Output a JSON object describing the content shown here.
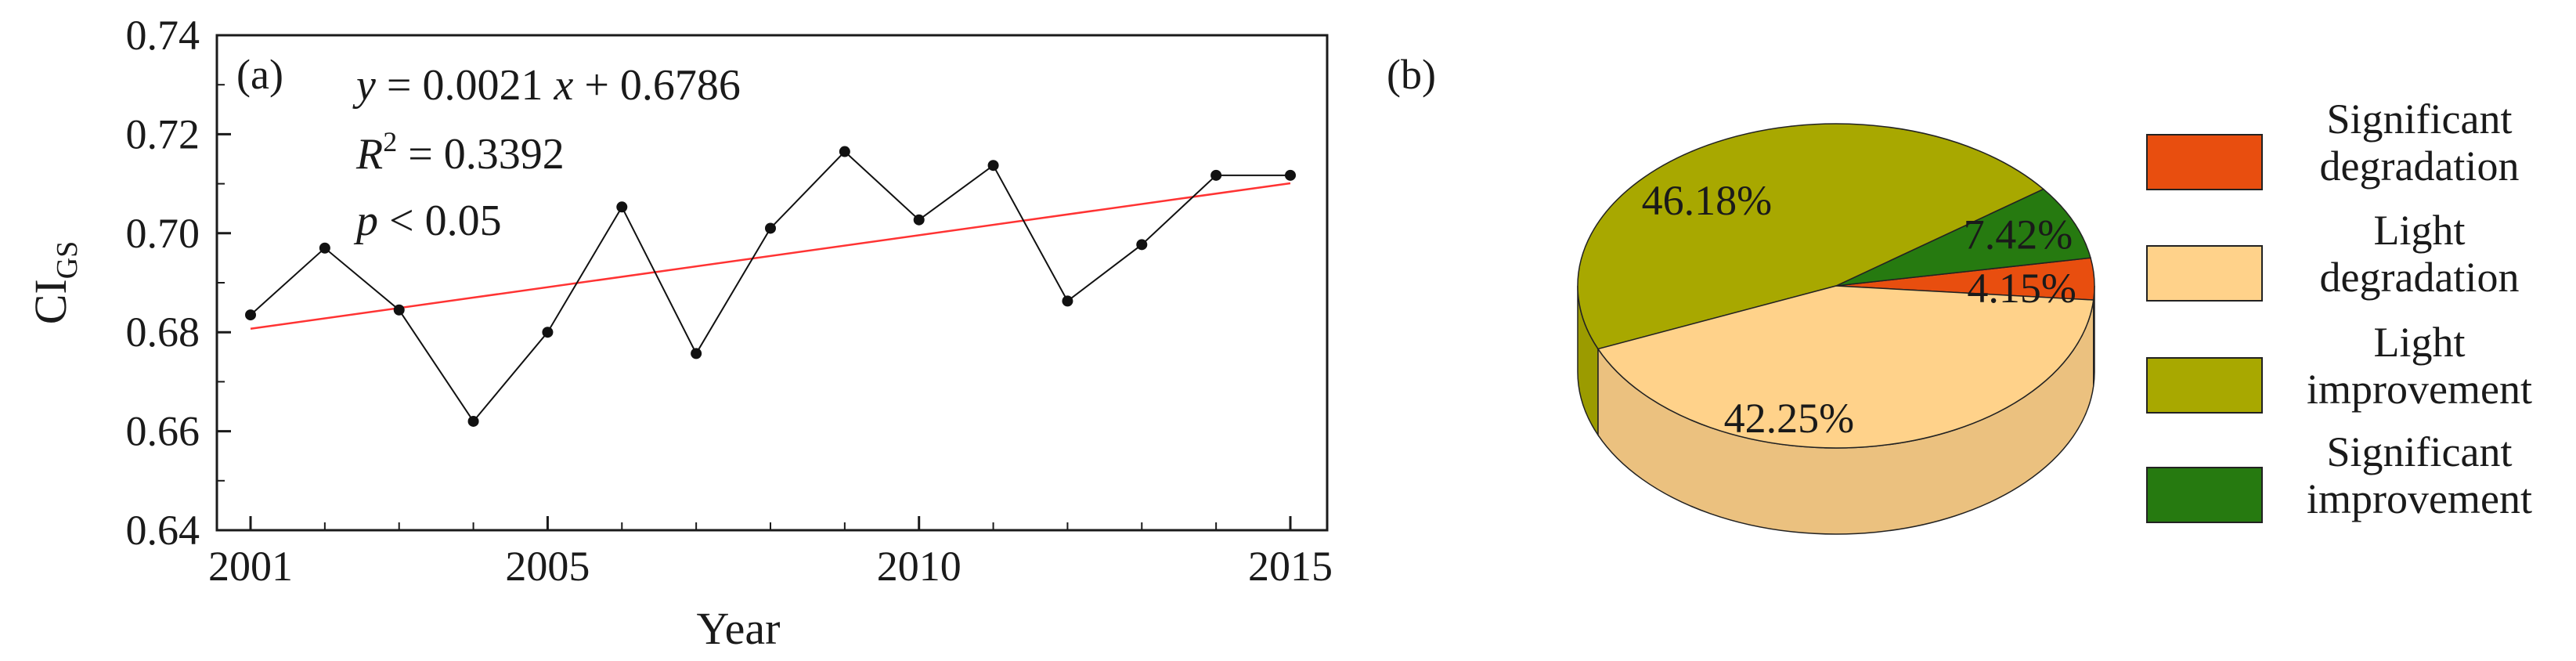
{
  "chart_data": [
    {
      "panel": "(a)",
      "type": "line",
      "title": "",
      "xlabel": "Year",
      "ylabel": "CI",
      "ylabel_subscript": "GS",
      "x": [
        2001,
        2002,
        2003,
        2004,
        2005,
        2006,
        2007,
        2008,
        2009,
        2010,
        2011,
        2012,
        2013,
        2014,
        2015
      ],
      "series": [
        {
          "values": [
            0.6835,
            0.697,
            0.6845,
            0.662,
            0.68,
            0.7053,
            0.6757,
            0.701,
            0.7165,
            0.7027,
            0.7137,
            0.6863,
            0.6977,
            0.7117,
            0.7117
          ],
          "color": "#111111"
        }
      ],
      "trend": {
        "slope": 0.0021,
        "intercept": 0.6786,
        "color": "#ff3333"
      },
      "xticks": [
        2001,
        2005,
        2010,
        2015
      ],
      "yticks": [
        "0.64",
        "0.66",
        "0.68",
        "0.70",
        "0.72",
        "0.74"
      ],
      "xlim": [
        2001,
        2015
      ],
      "ylim": [
        0.64,
        0.74
      ],
      "annotations": {
        "eq_y": "y",
        "eq_coef": " = 0.0021 ",
        "eq_x": "x",
        "eq_rest": " + 0.6786",
        "r2_r": "R",
        "r2_sup": "2",
        "r2_val": " = 0.3392",
        "p_p": "p",
        "p_val": " < 0.05"
      },
      "grid": false
    },
    {
      "panel": "(b)",
      "type": "pie",
      "title": "",
      "style": "3d",
      "slices": [
        {
          "label": "Significant degradation",
          "label_lines": [
            "Significant",
            "degradation"
          ],
          "value": 4.15,
          "value_label": "4.15%",
          "color": "#e84e0f"
        },
        {
          "label": "Light degradation",
          "label_lines": [
            "Light",
            "degradation"
          ],
          "value": 42.25,
          "value_label": "42.25%",
          "color": "#ffd28a"
        },
        {
          "label": "Light improvement",
          "label_lines": [
            "Light",
            "improvement"
          ],
          "value": 46.18,
          "value_label": "46.18%",
          "color": "#a8a800"
        },
        {
          "label": "Significant improvement",
          "label_lines": [
            "Significant",
            "improvement"
          ],
          "value": 7.42,
          "value_label": "7.42%",
          "color": "#267a10"
        }
      ],
      "legend_position": "right"
    }
  ]
}
